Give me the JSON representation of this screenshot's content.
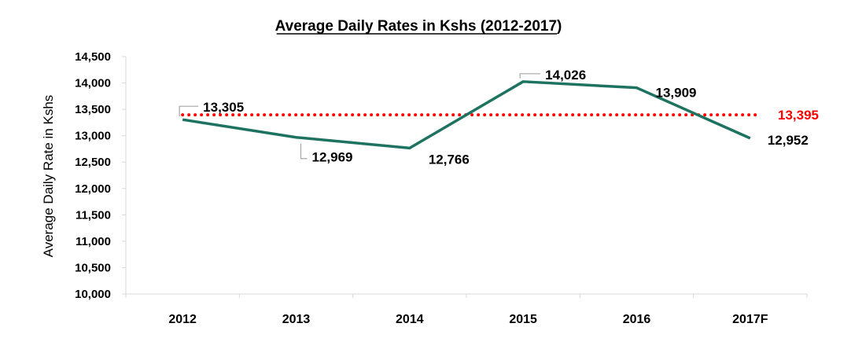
{
  "chart_data": {
    "type": "line",
    "title": "Average Daily Rates in Kshs (2012-2017)",
    "ylabel": "Average Daily Rate in Kshs",
    "xlabel": "",
    "categories": [
      "2012",
      "2013",
      "2014",
      "2015",
      "2016",
      "2017F"
    ],
    "series": [
      {
        "values": [
          13305,
          12969,
          12766,
          14026,
          13909,
          12952
        ],
        "color": "#1e7260"
      }
    ],
    "data_labels": [
      "13,305",
      "12,969",
      "12,766",
      "14,026",
      "13,909",
      "12,952"
    ],
    "average": {
      "value": 13395,
      "label": "13,395",
      "color": "#ff0000",
      "style": "dotted"
    },
    "ylim": [
      10000,
      14500
    ],
    "yticks": [
      10000,
      10500,
      11000,
      11500,
      12000,
      12500,
      13000,
      13500,
      14000,
      14500
    ],
    "ytick_labels": [
      "10,000",
      "10,500",
      "11,000",
      "11,500",
      "12,000",
      "12,500",
      "13,000",
      "13,500",
      "14,000",
      "14,500"
    ],
    "grid": false,
    "legend": "none"
  }
}
